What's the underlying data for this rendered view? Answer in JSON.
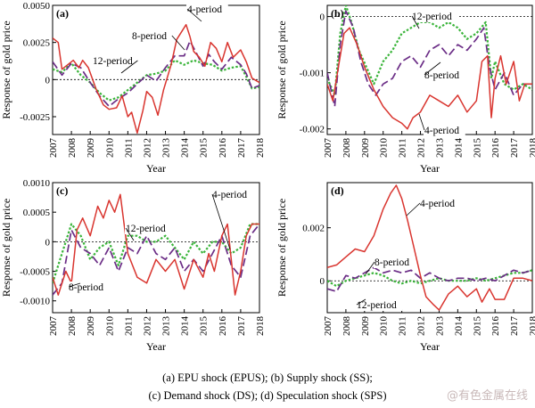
{
  "figure": {
    "caption_line1": "(a)  EPU  shock  (EPUS);  (b)  Supply  shock  (SS);",
    "caption_line2": "(c) Demand shock (DS); (d) Speculation shock (SPS)",
    "watermark": "@有色金属在线"
  },
  "colors": {
    "period4": "#d9352f",
    "period8": "#6b2d86",
    "period12": "#3ab43a",
    "zero": "#000000"
  },
  "chart_data": [
    {
      "type": "line",
      "panel": "(a)",
      "xlabel": "Year",
      "ylabel": "Response of gold price",
      "xlim": [
        2007,
        2018
      ],
      "ylim": [
        -0.0037,
        0.005
      ],
      "yticks": [
        0.005,
        0.0025,
        0,
        -0.0025
      ],
      "ytick_labels": [
        "0.0050",
        "0.0025",
        "0",
        "-0.0025"
      ],
      "xticks": [
        2007,
        2008,
        2009,
        2010,
        2011,
        2012,
        2013,
        2014,
        2015,
        2016,
        2017,
        2018
      ],
      "annotations": [
        "4-period",
        "8-period",
        "12-period"
      ],
      "series": [
        {
          "name": "4-period",
          "style": "solid",
          "x": [
            2007,
            2007.3,
            2007.5,
            2007.8,
            2008.1,
            2008.4,
            2008.6,
            2008.9,
            2009.3,
            2009.7,
            2010,
            2010.4,
            2010.7,
            2011,
            2011.2,
            2011.5,
            2011.8,
            2012,
            2012.3,
            2012.6,
            2012.9,
            2013.3,
            2013.6,
            2013.9,
            2014.1,
            2014.3,
            2014.5,
            2014.8,
            2015.1,
            2015.4,
            2015.7,
            2016,
            2016.3,
            2016.6,
            2017,
            2017.3,
            2017.6,
            2018
          ],
          "y": [
            0.0028,
            0.0025,
            0.0007,
            0.001,
            0.0013,
            0.0008,
            0.0013,
            0.0008,
            -0.0006,
            -0.0017,
            -0.002,
            -0.0019,
            -0.0011,
            -0.0025,
            -0.0022,
            -0.0036,
            -0.0021,
            -0.0008,
            -0.0012,
            -0.0024,
            -0.0007,
            0.001,
            0.0027,
            0.0033,
            0.0037,
            0.0029,
            0.0019,
            0.0015,
            0.0009,
            0.0025,
            0.0021,
            0.0012,
            0.0025,
            0.0015,
            0.002,
            0.0012,
            0.0001,
            -0.0002
          ]
        },
        {
          "name": "8-period",
          "style": "dashed",
          "x": [
            2007,
            2007.5,
            2008,
            2008.5,
            2009,
            2009.5,
            2010,
            2010.5,
            2011,
            2011.5,
            2012,
            2012.5,
            2013,
            2013.5,
            2014,
            2014.3,
            2014.6,
            2015,
            2015.3,
            2015.6,
            2016,
            2016.5,
            2017,
            2017.3,
            2017.6,
            2018
          ],
          "y": [
            0.0012,
            0.0003,
            0.0011,
            0.0008,
            -0.0002,
            -0.0011,
            -0.0018,
            -0.0013,
            -0.0009,
            -0.0003,
            0.0003,
            -0.0001,
            0.0008,
            0.0016,
            0.0016,
            0.0026,
            0.0019,
            0.0009,
            0.0017,
            0.0012,
            0.0007,
            0.0015,
            0.001,
            0.0004,
            -0.0006,
            -0.0004
          ]
        },
        {
          "name": "12-period",
          "style": "dotted",
          "x": [
            2007,
            2007.5,
            2008,
            2008.5,
            2009,
            2009.5,
            2010,
            2010.5,
            2011,
            2011.5,
            2012,
            2012.5,
            2013,
            2013.5,
            2014,
            2014.5,
            2015,
            2015.5,
            2016,
            2016.5,
            2017,
            2017.3,
            2017.6,
            2018
          ],
          "y": [
            0.0007,
            0.0005,
            0.0011,
            0.0003,
            -0.0002,
            -0.0009,
            -0.0014,
            -0.0012,
            -0.0007,
            -0.0002,
            0.0003,
            0.0004,
            0.0006,
            0.0013,
            0.001,
            0.0013,
            0.0011,
            0.001,
            0.0006,
            0.0008,
            0.0009,
            0.0002,
            -0.0006,
            -0.0005
          ]
        }
      ]
    },
    {
      "type": "line",
      "panel": "(b)",
      "xlabel": "Year",
      "ylabel": "Response of gold price",
      "xlim": [
        2007,
        2018
      ],
      "ylim": [
        -0.0021,
        0.0002
      ],
      "yticks": [
        0,
        -0.001,
        -0.002
      ],
      "ytick_labels": [
        "0",
        "-0.001",
        "-0.002"
      ],
      "xticks": [
        2007,
        2008,
        2009,
        2010,
        2011,
        2012,
        2013,
        2014,
        2015,
        2016,
        2017,
        2018
      ],
      "annotations": [
        "12-period",
        "8-period",
        "4-period"
      ],
      "series": [
        {
          "name": "4-period",
          "style": "solid",
          "x": [
            2007,
            2007.3,
            2007.6,
            2007.9,
            2008.2,
            2008.6,
            2009,
            2009.5,
            2010,
            2010.5,
            2011,
            2011.3,
            2011.6,
            2012,
            2012.5,
            2013,
            2013.5,
            2014,
            2014.5,
            2015,
            2015.3,
            2015.6,
            2015.8,
            2016,
            2016.3,
            2016.6,
            2017,
            2017.3,
            2017.6,
            2018
          ],
          "y": [
            -0.0012,
            -0.0015,
            -0.0009,
            -0.0003,
            -0.0002,
            -0.0005,
            -0.0009,
            -0.0013,
            -0.0016,
            -0.0018,
            -0.0019,
            -0.002,
            -0.0018,
            -0.0017,
            -0.0014,
            -0.0015,
            -0.0016,
            -0.0014,
            -0.0017,
            -0.0015,
            -0.0008,
            -0.0007,
            -0.0018,
            -0.0011,
            -0.0007,
            -0.0012,
            -0.0008,
            -0.0015,
            -0.0012,
            -0.0012
          ]
        },
        {
          "name": "8-period",
          "style": "dashed",
          "x": [
            2007,
            2007.4,
            2007.7,
            2008,
            2008.4,
            2008.8,
            2009.2,
            2009.6,
            2010,
            2010.5,
            2011,
            2011.5,
            2012,
            2012.5,
            2013,
            2013.5,
            2014,
            2014.5,
            2015,
            2015.4,
            2015.7,
            2016,
            2016.5,
            2017,
            2017.5,
            2018
          ],
          "y": [
            -0.001,
            -0.0016,
            -0.0005,
            0.0001,
            -0.0002,
            -0.0008,
            -0.0012,
            -0.0014,
            -0.0012,
            -0.0011,
            -0.0008,
            -0.0007,
            -0.0009,
            -0.0006,
            -0.0005,
            -0.0007,
            -0.0005,
            -0.0006,
            -0.0004,
            -0.0002,
            -0.0009,
            -0.0013,
            -0.001,
            -0.0014,
            -0.0012,
            -0.0012
          ]
        },
        {
          "name": "12-period",
          "style": "dotted",
          "x": [
            2007,
            2007.4,
            2007.7,
            2008,
            2008.3,
            2008.7,
            2009.1,
            2009.5,
            2010,
            2010.5,
            2011,
            2011.5,
            2012,
            2012.5,
            2013,
            2013.5,
            2014,
            2014.5,
            2015,
            2015.5,
            2015.8,
            2016,
            2016.5,
            2017,
            2017.5,
            2018
          ],
          "y": [
            -0.0011,
            -0.0014,
            -0.0003,
            0.0002,
            -0.0001,
            -0.0006,
            -0.0009,
            -0.0012,
            -0.0008,
            -0.0006,
            -0.0003,
            -0.0002,
            -0.0001,
            -0.0001,
            -0.0002,
            -0.0001,
            -0.0002,
            -0.0004,
            -0.0003,
            -0.0001,
            -0.0011,
            -0.0008,
            -0.0012,
            -0.0013,
            -0.0012,
            -0.0013
          ]
        }
      ]
    },
    {
      "type": "line",
      "panel": "(c)",
      "xlabel": "Year",
      "ylabel": "Response of gold price",
      "xlim": [
        2007,
        2018
      ],
      "ylim": [
        -0.0012,
        0.001
      ],
      "yticks": [
        0.001,
        0.0005,
        0,
        -0.0005,
        -0.001
      ],
      "ytick_labels": [
        "0.0010",
        "0.0005",
        "0",
        "-0.0005",
        "-0.0010"
      ],
      "xticks": [
        2007,
        2008,
        2009,
        2010,
        2011,
        2012,
        2013,
        2014,
        2015,
        2016,
        2017,
        2018
      ],
      "annotations": [
        "4-period",
        "12-period",
        "8-period"
      ],
      "series": [
        {
          "name": "4-period",
          "style": "solid",
          "x": [
            2007,
            2007.3,
            2007.7,
            2008,
            2008.3,
            2008.6,
            2009,
            2009.4,
            2009.7,
            2010,
            2010.3,
            2010.6,
            2011,
            2011.5,
            2012,
            2012.5,
            2013,
            2013.5,
            2014,
            2014.5,
            2015,
            2015.3,
            2015.6,
            2016,
            2016.3,
            2016.7,
            2017,
            2017.3,
            2017.6,
            2018
          ],
          "y": [
            -0.0006,
            -0.0009,
            -0.0005,
            -0.0007,
            0.0002,
            0.0004,
            0.0001,
            0.0006,
            0.0004,
            0.0007,
            0.0005,
            0.0008,
            -0.0002,
            -0.0006,
            -0.0007,
            -0.0003,
            -0.0005,
            -0.0003,
            -0.0008,
            -0.0003,
            -0.0006,
            -0.0002,
            -0.0005,
            0.0001,
            0.0003,
            -0.0009,
            -0.0005,
            0.0001,
            0.0003,
            0.0003
          ]
        },
        {
          "name": "8-period",
          "style": "dashed",
          "x": [
            2007,
            2007.5,
            2008,
            2008.5,
            2009,
            2009.5,
            2010,
            2010.5,
            2011,
            2011.5,
            2012,
            2012.5,
            2013,
            2013.5,
            2014,
            2014.5,
            2015,
            2015.5,
            2016,
            2016.5,
            2017,
            2017.5,
            2018
          ],
          "y": [
            -0.0009,
            -0.0007,
            0.0002,
            -0.0001,
            -0.0002,
            -0.0004,
            -0.0001,
            -0.0005,
            -0.0001,
            -0.0002,
            0.0001,
            -0.0002,
            -0.0003,
            -0.0001,
            -0.0005,
            -0.0003,
            -0.0005,
            -0.0002,
            0.0001,
            -0.0004,
            -0.0006,
            0.0001,
            0.0003
          ]
        },
        {
          "name": "12-period",
          "style": "dotted",
          "x": [
            2007,
            2007.5,
            2008,
            2008.5,
            2009,
            2009.5,
            2010,
            2010.5,
            2011,
            2011.5,
            2012,
            2012.5,
            2013,
            2013.5,
            2014,
            2014.5,
            2015,
            2015.5,
            2016,
            2016.5,
            2017,
            2017.5,
            2018
          ],
          "y": [
            -0.0007,
            -0.0002,
            0.0003,
            0.0001,
            -0.0003,
            -0.0001,
            0.0,
            -0.0004,
            0.0001,
            0.0001,
            0.0,
            0.0,
            0.0001,
            -0.0001,
            -0.0003,
            0.0,
            -0.0002,
            0.0,
            0.0,
            -0.0002,
            -0.0001,
            0.0003,
            0.0003
          ]
        }
      ]
    },
    {
      "type": "line",
      "panel": "(d)",
      "xlabel": "Year",
      "ylabel": "Response of gold price",
      "xlim": [
        2007,
        2018
      ],
      "ylim": [
        -0.0012,
        0.0037
      ],
      "yticks": [
        0.002,
        0
      ],
      "ytick_labels": [
        "0.002",
        "0"
      ],
      "xticks": [
        2007,
        2008,
        2009,
        2010,
        2011,
        2012,
        2013,
        2014,
        2015,
        2016,
        2017,
        2018
      ],
      "annotations": [
        "4-period",
        "8-period",
        "12-period"
      ],
      "series": [
        {
          "name": "4-period",
          "style": "solid",
          "x": [
            2007,
            2007.5,
            2008,
            2008.5,
            2009,
            2009.5,
            2010,
            2010.4,
            2010.7,
            2011,
            2011.3,
            2011.6,
            2012,
            2012.3,
            2012.7,
            2013,
            2013.5,
            2014,
            2014.5,
            2015,
            2015.3,
            2015.7,
            2016,
            2016.5,
            2017,
            2017.5,
            2018
          ],
          "y": [
            0.0005,
            0.0006,
            0.0009,
            0.0012,
            0.0011,
            0.0017,
            0.0027,
            0.0033,
            0.0036,
            0.0031,
            0.0023,
            0.0014,
            0.0002,
            -0.0006,
            -0.0009,
            -0.0011,
            -0.0005,
            -0.0002,
            -0.0006,
            -0.0003,
            -0.0008,
            -0.0003,
            -0.0007,
            -0.0007,
            0.0001,
            0.0001,
            0.0
          ]
        },
        {
          "name": "8-period",
          "style": "dashed",
          "x": [
            2007,
            2007.5,
            2008,
            2008.5,
            2009,
            2009.5,
            2010,
            2010.5,
            2011,
            2011.5,
            2012,
            2012.5,
            2013,
            2013.5,
            2014,
            2014.5,
            2015,
            2015.5,
            2016,
            2016.5,
            2017,
            2017.5,
            2018
          ],
          "y": [
            -0.0003,
            -0.0004,
            0.0002,
            0.0001,
            0.0003,
            0.0005,
            0.0003,
            0.0004,
            0.0003,
            0.0004,
            0.0001,
            0.0003,
            0.0001,
            0.0,
            0.0001,
            0.0001,
            0.0,
            0.0001,
            0.0,
            0.0002,
            0.0004,
            0.0003,
            0.0004
          ]
        },
        {
          "name": "12-period",
          "style": "dotted",
          "x": [
            2007,
            2007.5,
            2008,
            2008.5,
            2009,
            2009.5,
            2010,
            2010.5,
            2011,
            2011.5,
            2012,
            2012.5,
            2013,
            2013.5,
            2014,
            2014.5,
            2015,
            2015.5,
            2016,
            2016.5,
            2017,
            2017.5,
            2018
          ],
          "y": [
            0.0,
            -0.0002,
            0.0,
            0.0001,
            0.0002,
            0.0003,
            0.0002,
            0.0,
            -0.0001,
            0.0,
            -0.0001,
            0.0,
            0.0001,
            0.0,
            0.0,
            0.0,
            0.0001,
            0.0,
            0.0001,
            0.0002,
            0.0003,
            0.0003,
            0.0004
          ]
        }
      ]
    }
  ]
}
